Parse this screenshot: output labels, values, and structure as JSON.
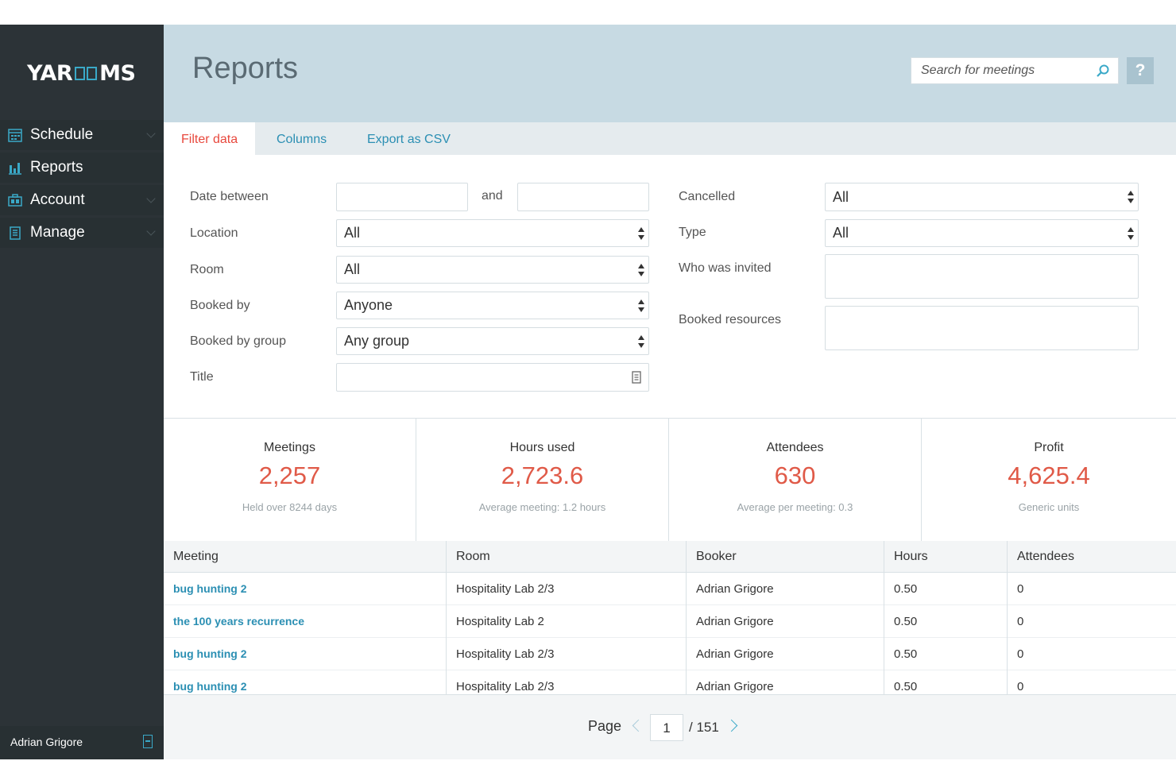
{
  "app": {
    "logo_text": "YAROOMS"
  },
  "sidebar": {
    "items": [
      {
        "label": "Schedule"
      },
      {
        "label": "Reports"
      },
      {
        "label": "Account"
      },
      {
        "label": "Manage"
      }
    ],
    "user_name": "Adrian Grigore"
  },
  "header": {
    "title": "Reports",
    "search_placeholder": "Search for meetings",
    "help_label": "?"
  },
  "tabs": [
    "Filter data",
    "Columns",
    "Export as CSV"
  ],
  "filters": {
    "date_between_label": "Date between",
    "and_label": "and",
    "date_from": "",
    "date_to": "",
    "location_label": "Location",
    "location_value": "All",
    "room_label": "Room",
    "room_value": "All",
    "booked_by_label": "Booked by",
    "booked_by_value": "Anyone",
    "booked_by_group_label": "Booked by group",
    "booked_by_group_value": "Any group",
    "title_label": "Title",
    "title_value": "",
    "cancelled_label": "Cancelled",
    "cancelled_value": "All",
    "type_label": "Type",
    "type_value": "All",
    "who_invited_label": "Who was invited",
    "booked_resources_label": "Booked resources"
  },
  "stats": [
    {
      "label": "Meetings",
      "value": "2,257",
      "sub": "Held over 8244 days"
    },
    {
      "label": "Hours used",
      "value": "2,723.6",
      "sub": "Average meeting: 1.2 hours"
    },
    {
      "label": "Attendees",
      "value": "630",
      "sub": "Average per meeting: 0.3"
    },
    {
      "label": "Profit",
      "value": "4,625.4",
      "sub": "Generic units"
    }
  ],
  "table": {
    "columns": [
      "Meeting",
      "Room",
      "Booker",
      "Hours",
      "Attendees"
    ],
    "rows": [
      {
        "meeting": "bug hunting 2",
        "room": "Hospitality Lab 2/3",
        "booker": "Adrian Grigore",
        "hours": "0.50",
        "attendees": "0"
      },
      {
        "meeting": "the 100 years recurrence",
        "room": "Hospitality Lab 2",
        "booker": "Adrian Grigore",
        "hours": "0.50",
        "attendees": "0"
      },
      {
        "meeting": "bug hunting 2",
        "room": "Hospitality Lab 2/3",
        "booker": "Adrian Grigore",
        "hours": "0.50",
        "attendees": "0"
      },
      {
        "meeting": "bug hunting 2",
        "room": "Hospitality Lab 2/3",
        "booker": "Adrian Grigore",
        "hours": "0.50",
        "attendees": "0"
      }
    ]
  },
  "pagination": {
    "label": "Page",
    "current": "1",
    "total": "/ 151"
  },
  "colors": {
    "accent": "#3aa9c8",
    "sidebar_bg": "#2c3337",
    "header_bg": "#c7dae3",
    "stat_value": "#e05a48",
    "active_tab": "#e8483d"
  }
}
